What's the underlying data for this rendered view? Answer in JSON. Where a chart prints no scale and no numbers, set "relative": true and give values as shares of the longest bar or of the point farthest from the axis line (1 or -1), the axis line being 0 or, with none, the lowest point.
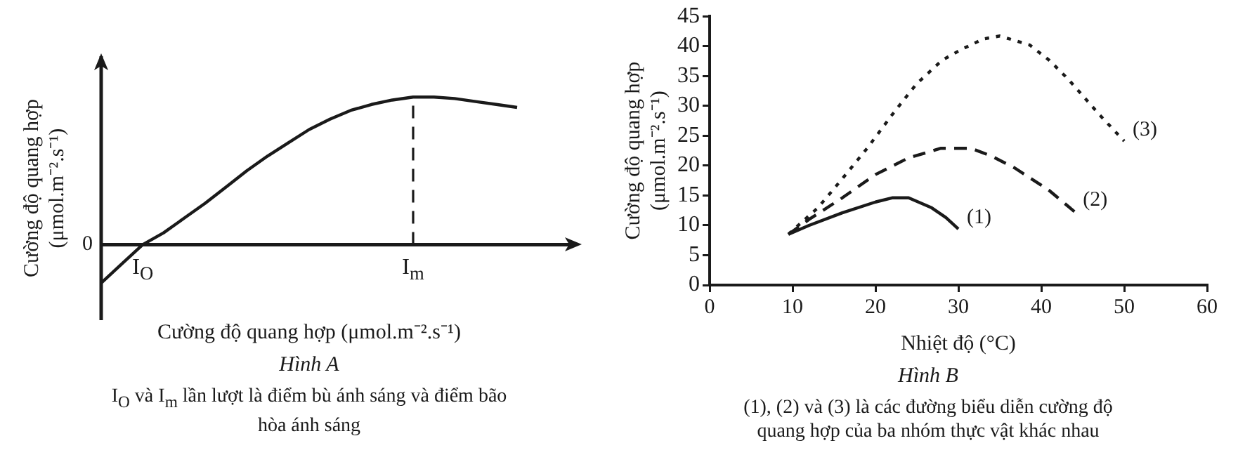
{
  "chart_data": [
    {
      "type": "line",
      "relative": true,
      "title": "Hình A",
      "xlabel": "Cường độ quang hợp (μmol.m⁻².s⁻¹)",
      "ylabel": "Cường độ quang hợp (μmol.m⁻².s⁻¹)",
      "categories": [
        null,
        null,
        "I$_{O}$",
        null,
        null,
        null,
        null,
        null,
        null,
        null,
        null,
        null,
        null,
        null,
        null,
        "I$_{m}$",
        null,
        null,
        null,
        null,
        null
      ],
      "series": [
        {
          "color": "#1a1a1a",
          "line_style": "solid",
          "values": [
            -0.26,
            -0.13,
            0,
            0.08,
            0.18,
            0.28,
            0.39,
            0.5,
            0.6,
            0.69,
            0.78,
            0.85,
            0.91,
            0.95,
            0.98,
            1,
            1,
            0.99,
            0.97,
            0.95,
            0.93
          ]
        }
      ],
      "ref_lines": [
        {
          "axis": "x",
          "value": "I$_{m}$",
          "line_style": "dashed",
          "color": "#1a1a1a"
        }
      ],
      "annotations": [
        {
          "text": "0"
        },
        "I$_{O}$ và I$_{m}$ lần lượt là điểm bù ánh sáng và điểm bão hòa ánh sáng"
      ],
      "grid": false,
      "legend": false,
      "marker": "none"
    },
    {
      "type": "line",
      "title": "Hình B",
      "xlabel": "Nhiệt độ (°C)",
      "ylabel": "Cường độ quang hợp (μmol.m⁻².s⁻¹)",
      "xlim": [
        0,
        60
      ],
      "xticks": [
        0,
        10,
        20,
        30,
        40,
        50,
        60
      ],
      "ylim": [
        0,
        45
      ],
      "yticks": [
        0,
        5,
        10,
        15,
        20,
        25,
        30,
        35,
        40,
        45
      ],
      "series": [
        {
          "name": "(1)",
          "color": "#1a1a1a",
          "line_style": "solid",
          "x": [
            9.5,
            12,
            16,
            20,
            22,
            24,
            26.7,
            28.5,
            30
          ],
          "values": [
            8.5,
            10,
            12.1,
            13.9,
            14.6,
            14.6,
            13,
            11.3,
            9.4
          ]
        },
        {
          "name": "(2)",
          "color": "#1a1a1a",
          "line_style": "dashed",
          "x": [
            9.5,
            12,
            16,
            20,
            24,
            27.9,
            31.5,
            34,
            36.8,
            40.9,
            44
          ],
          "values": [
            8.5,
            11,
            14.6,
            18.5,
            21.3,
            22.9,
            22.9,
            21.6,
            19.6,
            15.9,
            12.3
          ]
        },
        {
          "name": "(3)",
          "color": "#1a1a1a",
          "line_style": "dotted",
          "x": [
            9.5,
            13.1,
            16,
            19,
            22,
            24.9,
            28,
            30.3,
            33,
            35,
            38.6,
            41,
            43.3,
            46.9,
            50
          ],
          "values": [
            8.5,
            13,
            17.8,
            22.9,
            28.5,
            33.6,
            37.6,
            39.4,
            41.2,
            41.7,
            40.2,
            37.6,
            34.4,
            28.7,
            24.1
          ]
        }
      ],
      "annotations": [
        "(1), (2) và (3) là các đường biểu diễn cường độ quang hợp của ba nhóm thực vật khác nhau"
      ],
      "grid": false,
      "legend": false,
      "marker": "none"
    }
  ]
}
